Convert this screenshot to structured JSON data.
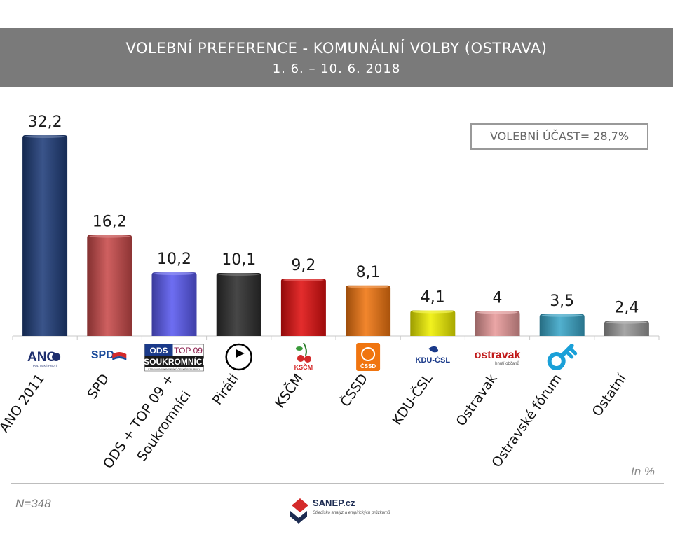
{
  "header": {
    "title": "VOLEBNÍ PREFERENCE - KOMUNÁLNÍ VOLBY (OSTRAVA)",
    "date_range": "1. 6. – 10. 6. 2018"
  },
  "turnout_label": "VOLEBNÍ ÚČAST= 28,7%",
  "unit_label": "In %",
  "sample_size": "N=348",
  "brand": {
    "name": "SANEP.cz",
    "tagline": "Středisko analýz a empirických průzkumů"
  },
  "chart_data": {
    "type": "bar",
    "title": "VOLEBNÍ PREFERENCE - KOMUNÁLNÍ VOLBY (OSTRAVA)",
    "xlabel": "",
    "ylabel": "",
    "ylim": [
      0,
      33
    ],
    "grid": false,
    "categories": [
      "ANO 2011",
      "SPD",
      "ODS + TOP 09 + Soukromníci",
      "Piráti",
      "KSČM",
      "ČSSD",
      "KDU-ČSL",
      "Ostravak",
      "Ostravské fórum",
      "Ostatní"
    ],
    "values": [
      32.2,
      16.2,
      10.2,
      10.1,
      9.2,
      8.1,
      4.1,
      4,
      3.5,
      2.4
    ],
    "value_labels": [
      "32,2",
      "16,2",
      "10,2",
      "10,1",
      "9,2",
      "8,1",
      "4,1",
      "4",
      "3,5",
      "2,4"
    ],
    "colors": [
      "#1f3d7a",
      "#c94a4a",
      "#5a5af0",
      "#2e2e2e",
      "#e01010",
      "#f07510",
      "#f0f000",
      "#e89a9a",
      "#3aa6c8",
      "#9a9a9a"
    ],
    "logos": [
      {
        "icon": "ano-logo",
        "text": "ANO",
        "subtext": "POLITICKÉ HNUTÍ"
      },
      {
        "icon": "spd-logo",
        "text": "SPD"
      },
      {
        "icon": "ods-top09-logo",
        "text": "ODS",
        "text2": "TOP 09",
        "text3": "SOUKROMNÍCI",
        "subtext": "STRANA SOUKROMNÍKŮ ČESKÉ REPUBLIKY"
      },
      {
        "icon": "pirate-logo"
      },
      {
        "icon": "kscm-logo",
        "text": "KSČM"
      },
      {
        "icon": "cssd-logo",
        "text": "ČSSD"
      },
      {
        "icon": "kducsl-logo",
        "text": "KDU-ČSL"
      },
      {
        "icon": "ostravak-logo",
        "text": "ostravak",
        "subtext": "hnutí občanů"
      },
      {
        "icon": "ostravske-forum-logo"
      },
      {
        "icon": "none"
      }
    ]
  }
}
